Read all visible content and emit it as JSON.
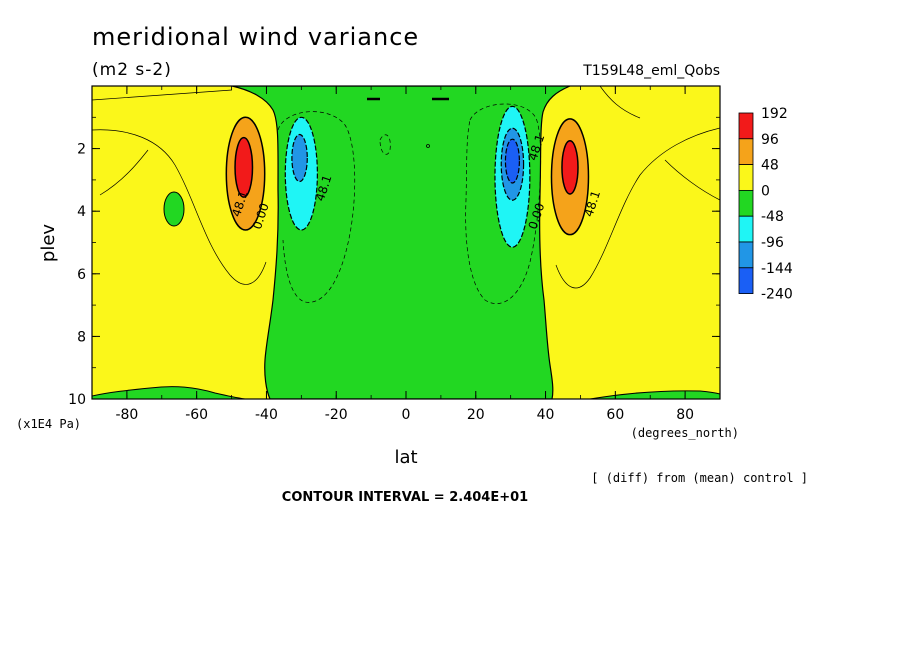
{
  "chart_data": {
    "type": "contour",
    "title": "meridional wind variance",
    "units": "(m2 s-2)",
    "experiment": "T159L48_eml_Qobs",
    "xlabel": "lat",
    "x_units": "(degrees_north)",
    "ylabel": "plev",
    "y_units": "(x1E4 Pa)",
    "xlim": [
      -90,
      90
    ],
    "ylim": [
      0,
      10
    ],
    "y_inverted": true,
    "x_ticks": [
      -80,
      -60,
      -40,
      -20,
      0,
      20,
      40,
      60,
      80
    ],
    "x_tick_labels": [
      "-80",
      "-60",
      "-40",
      "-20",
      "0",
      "20",
      "40",
      "60",
      "80"
    ],
    "y_ticks": [
      2,
      4,
      6,
      8,
      10
    ],
    "y_tick_labels": [
      "2",
      "4",
      "6",
      "8",
      "10"
    ],
    "colorbar": {
      "levels": [
        192,
        96,
        48,
        0,
        -48,
        -96,
        -144,
        -240
      ],
      "labels": [
        "192",
        "96",
        "48",
        "0",
        "-48",
        "-96",
        "-144",
        "-240"
      ],
      "colors": [
        "#f21a1a",
        "#f5a31a",
        "#fbf71a",
        "#22d722",
        "#1ff5f5",
        "#2196e6",
        "#1a5ff5"
      ]
    },
    "contour_labels": [
      {
        "text": "48.1",
        "lat": -46.5,
        "plev": 3.8
      },
      {
        "text": "0.00",
        "lat": -40.5,
        "plev": 4.2
      },
      {
        "text": "48.1",
        "lat": -22.5,
        "plev": 3.3
      },
      {
        "text": "0.00",
        "lat": 38.5,
        "plev": 4.2
      },
      {
        "text": "48.1",
        "lat": 38.5,
        "plev": 2.0
      },
      {
        "text": "48.1",
        "lat": 54.5,
        "plev": 3.8
      }
    ],
    "regions": [
      {
        "name": "positive-anomaly-south",
        "level": "48",
        "color": "#f5a31a",
        "lat": -46,
        "plev": 2.8,
        "rx": 5.5,
        "ry": 1.8
      },
      {
        "name": "positive-max-south",
        "level": "96",
        "color": "#f21a1a",
        "lat": -46.5,
        "plev": 2.6,
        "rx": 2.5,
        "ry": 0.95
      },
      {
        "name": "negative-anomaly-south",
        "level": "-48",
        "color": "#1ff5f5",
        "lat": -30,
        "plev": 2.8,
        "rx": 4.6,
        "ry": 1.8
      },
      {
        "name": "negative-core-south",
        "level": "-96",
        "color": "#2196e6",
        "lat": -30.5,
        "plev": 2.3,
        "rx": 2.2,
        "ry": 0.75
      },
      {
        "name": "negative-anomaly-north",
        "level": "-48",
        "color": "#1ff5f5",
        "lat": 30.5,
        "plev": 2.9,
        "rx": 5.0,
        "ry": 2.25
      },
      {
        "name": "negative-core-north",
        "level": "-96",
        "color": "#2196e6",
        "lat": 30.5,
        "plev": 2.5,
        "rx": 3.2,
        "ry": 1.15
      },
      {
        "name": "negative-max-north",
        "level": "-144",
        "color": "#1a5ff5",
        "lat": 30.5,
        "plev": 2.4,
        "rx": 2.0,
        "ry": 0.7
      },
      {
        "name": "positive-anomaly-north",
        "level": "48",
        "color": "#f5a31a",
        "lat": 47,
        "plev": 2.9,
        "rx": 5.3,
        "ry": 1.85
      },
      {
        "name": "positive-max-north",
        "level": "96",
        "color": "#f21a1a",
        "lat": 47,
        "plev": 2.6,
        "rx": 2.3,
        "ry": 0.85
      }
    ],
    "annotation": "[ (diff) from (mean) control ]",
    "contour_interval": "CONTOUR INTERVAL = 2.404E+01"
  }
}
